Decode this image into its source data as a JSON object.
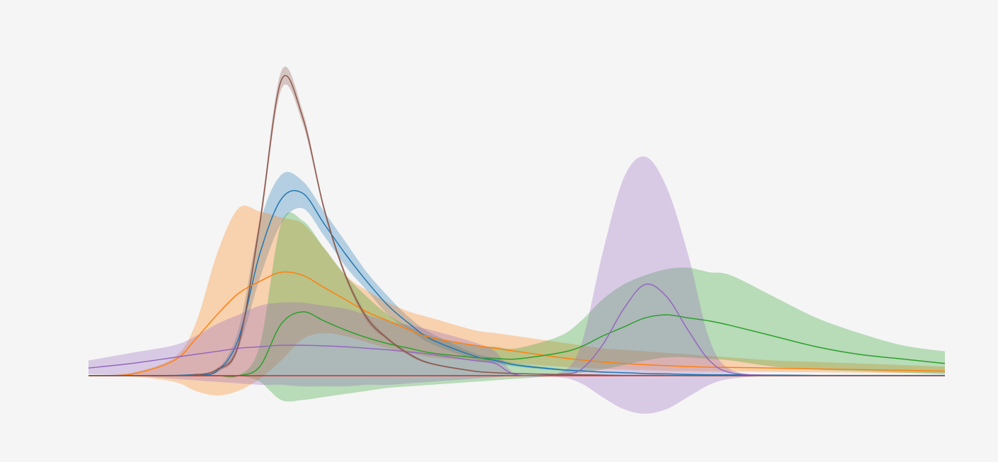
{
  "chart_data": {
    "type": "line",
    "x": [
      0,
      5,
      10,
      12.5,
      15,
      17.5,
      20,
      22.5,
      25,
      27.5,
      30,
      32.5,
      35,
      37.5,
      40,
      45,
      47.5,
      50,
      55,
      57.5,
      60,
      62.5,
      65,
      67.5,
      70,
      72.5,
      75,
      80,
      85,
      90,
      95,
      100
    ],
    "xlim": [
      0,
      100
    ],
    "ylim": [
      -25,
      105
    ],
    "grid": false,
    "band_opacity": 0.3,
    "series": [
      {
        "color": "#1f77b4",
        "values": [
          0,
          0,
          0.1,
          0.4,
          1.5,
          12,
          40,
          58,
          60,
          50,
          40,
          31,
          23,
          17,
          12,
          6.5,
          5,
          3.5,
          2,
          1.6,
          1.2,
          1,
          0.7,
          0.6,
          0.4,
          0.3,
          0.3,
          0.2,
          0.1,
          0.1,
          0.1,
          0.1
        ],
        "upper": [
          0,
          0,
          0.1,
          0.5,
          2,
          15,
          50,
          66,
          64,
          54,
          44,
          34,
          26,
          19,
          14,
          7.5,
          5.8,
          4,
          2.3,
          1.8,
          1.4,
          1.1,
          0.8,
          0.7,
          0.5,
          0.4,
          0.3,
          0.2,
          0.1,
          0.1,
          0.1,
          0.1
        ],
        "lower": [
          0,
          0,
          0.1,
          0.3,
          1,
          9,
          32,
          50,
          55,
          46,
          36,
          28,
          20,
          15,
          10.5,
          5.5,
          4.2,
          3,
          1.7,
          1.4,
          1,
          0.9,
          0.6,
          0.5,
          0.3,
          0.2,
          0.2,
          0.1,
          0.1,
          0.1,
          0.1,
          0.1
        ]
      },
      {
        "color": "#ff7f0e",
        "values": [
          0,
          0.5,
          5,
          12,
          20,
          27,
          31,
          34,
          33,
          29,
          25,
          21,
          18,
          15,
          12.5,
          10,
          9,
          8,
          6,
          5.2,
          4.5,
          4,
          3.6,
          3.3,
          3,
          2.8,
          2.7,
          2.5,
          2.2,
          2,
          1.8,
          1.5
        ],
        "upper": [
          0,
          1,
          6,
          17,
          40,
          55,
          54,
          52,
          50,
          42,
          33,
          28,
          24,
          21,
          19,
          15,
          14,
          13,
          11,
          10,
          9,
          8.5,
          8,
          7.5,
          7,
          6.5,
          6,
          5,
          4.5,
          4,
          3.5,
          3
        ],
        "lower": [
          0,
          -0.3,
          -2,
          -5,
          -6.5,
          -5,
          -1,
          5,
          12,
          14,
          13,
          11,
          9,
          7.5,
          6,
          5,
          4.5,
          4,
          3,
          2.6,
          2.2,
          2,
          1.8,
          1.6,
          1.5,
          1.4,
          1.3,
          1.2,
          1.1,
          1,
          0.9,
          0.8
        ]
      },
      {
        "color": "#2ca02c",
        "values": [
          0,
          0,
          0,
          0,
          0,
          0,
          3,
          17,
          21,
          18,
          15,
          12.5,
          10.5,
          9,
          7.5,
          6,
          5.7,
          5.5,
          7.5,
          9.5,
          13,
          16,
          19,
          20,
          19,
          18,
          16.5,
          13,
          9.5,
          7,
          5.5,
          4
        ],
        "upper": [
          0,
          0,
          0,
          0,
          0,
          0,
          10,
          50,
          51,
          42,
          33,
          26,
          20,
          16,
          13,
          10,
          9.5,
          9,
          13,
          18,
          25,
          30,
          33,
          35,
          35.5,
          34,
          33,
          26,
          19,
          14,
          10,
          8
        ],
        "lower": [
          0,
          0,
          0,
          0,
          0,
          0,
          -2,
          -8,
          -8,
          -7,
          -6,
          -5,
          -4,
          -3.5,
          -3,
          -2,
          -1.5,
          -1,
          0,
          1,
          2,
          3.5,
          5,
          6,
          6,
          5.5,
          5,
          3,
          2,
          1.5,
          1,
          0.5
        ]
      },
      {
        "color": "#d62728",
        "values": [
          0,
          0,
          0,
          0,
          0,
          0,
          0,
          0,
          0,
          0,
          0,
          0,
          0,
          0,
          0,
          0,
          0,
          0,
          0,
          0,
          0,
          0,
          0,
          0,
          0,
          0,
          0,
          0,
          0,
          0,
          0,
          0
        ]
      },
      {
        "color": "#9467bd",
        "values": [
          2.5,
          4,
          6,
          7,
          8,
          9,
          9.5,
          10,
          10,
          9.8,
          9.5,
          9,
          8.5,
          7.8,
          7,
          5,
          4,
          0.3,
          0.5,
          2,
          10,
          22,
          30,
          26,
          15,
          5,
          1,
          0.1,
          0,
          0,
          0,
          0
        ],
        "upper": [
          5,
          7.5,
          10,
          13,
          17,
          20,
          23,
          24,
          24,
          23,
          22,
          20,
          18,
          16.5,
          15,
          11,
          8,
          0.5,
          1,
          10,
          40,
          65,
          72,
          62,
          40,
          12,
          2,
          0.2,
          0,
          0,
          0,
          0
        ],
        "lower": [
          0.5,
          0,
          -1,
          -1.5,
          -2,
          -2.5,
          -3,
          -3,
          -3.5,
          -3.5,
          -3.5,
          -3,
          -3,
          -2.5,
          -2,
          -1,
          -0.5,
          0,
          -0.5,
          -2.5,
          -7,
          -11,
          -12.5,
          -11,
          -7,
          -3,
          -1,
          0,
          0,
          0,
          0,
          0
        ]
      },
      {
        "color": "#8c564b",
        "values": [
          0,
          0,
          0,
          0.3,
          2,
          10,
          50,
          97,
          85,
          55,
          33,
          19,
          12,
          7,
          4,
          1.5,
          1,
          0.7,
          0.4,
          0.3,
          0.2,
          0.1,
          0.1,
          0.1,
          0,
          0,
          0,
          0,
          0,
          0,
          0,
          0
        ],
        "upper": [
          0,
          0,
          0,
          0.4,
          2.5,
          11,
          52,
          100,
          87,
          56,
          34,
          20,
          12.5,
          7.5,
          4.3,
          1.7,
          1.1,
          0.8,
          0.5,
          0.3,
          0.2,
          0.1,
          0.1,
          0.1,
          0,
          0,
          0,
          0,
          0,
          0,
          0,
          0
        ],
        "lower": [
          0,
          0,
          0,
          0.2,
          1.5,
          9,
          48,
          94,
          83,
          54,
          32,
          18,
          11.5,
          6.5,
          3.7,
          1.3,
          0.9,
          0.6,
          0.3,
          0.3,
          0.2,
          0.1,
          0.1,
          0.1,
          0,
          0,
          0,
          0,
          0,
          0,
          0,
          0
        ]
      }
    ]
  }
}
